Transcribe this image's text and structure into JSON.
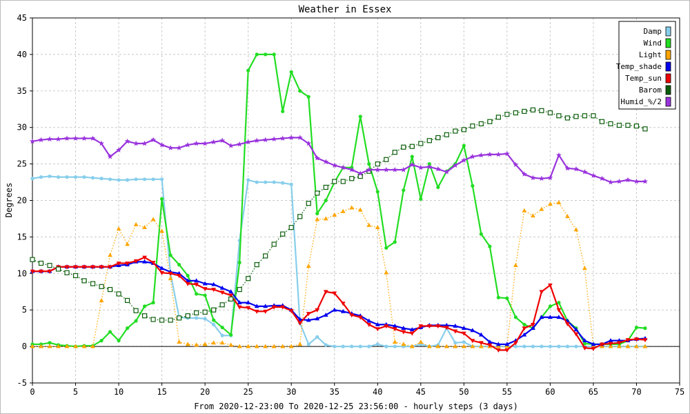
{
  "chart_data": {
    "type": "line",
    "title": "Weather in Essex",
    "xlabel": "From 2020-12-23:00 To 2020-12-25 23:56:00 - hourly steps (3 days)",
    "ylabel": "Degrees",
    "xlim": [
      0,
      75
    ],
    "ylim": [
      -5,
      45
    ],
    "xticks": [
      0,
      5,
      10,
      15,
      20,
      25,
      30,
      35,
      40,
      45,
      50,
      55,
      60,
      65,
      70,
      75
    ],
    "yticks": [
      -5,
      0,
      5,
      10,
      15,
      20,
      25,
      30,
      35,
      40,
      45
    ],
    "grid": true,
    "legend_position": "top-right",
    "series": [
      {
        "name": "Damp",
        "color": "#87ceeb",
        "marker": "circle",
        "dash": "solid",
        "values": [
          23,
          23.2,
          23.3,
          23.2,
          23.2,
          23.2,
          23.2,
          23.1,
          23,
          22.9,
          22.8,
          22.8,
          22.9,
          22.9,
          22.9,
          22.9,
          10,
          4,
          3.9,
          3.9,
          3.8,
          3,
          1.5,
          1.5,
          14.5,
          22.8,
          22.5,
          22.5,
          22.5,
          22.4,
          22.2,
          3.2,
          0.3,
          1.3,
          0.2,
          0,
          0,
          0,
          0,
          0,
          0.3,
          0,
          0,
          0,
          0,
          0.3,
          0,
          0.2,
          2.5,
          0.5,
          0.6,
          0,
          0,
          0,
          0,
          0,
          0,
          0,
          0,
          0,
          0,
          0,
          0,
          0,
          0,
          0,
          0,
          0,
          0,
          0,
          0,
          0
        ]
      },
      {
        "name": "Wind",
        "color": "#22dd22",
        "marker": "circle",
        "dash": "solid",
        "values": [
          0.3,
          0.3,
          0.5,
          0.2,
          0.1,
          0,
          0.1,
          0.1,
          0.8,
          2,
          0.8,
          2.5,
          3.5,
          5.5,
          6,
          20.2,
          12.5,
          11.2,
          9.7,
          7.2,
          7,
          3.6,
          2.6,
          1.6,
          11.5,
          37.8,
          40,
          40,
          40,
          32.2,
          37.6,
          35,
          34.2,
          18.2,
          20,
          22.5,
          24.5,
          24.5,
          31.5,
          25,
          21.2,
          13.5,
          14.3,
          21.4,
          26,
          20.2,
          25,
          21.8,
          24,
          25,
          27.5,
          22,
          15.4,
          13.7,
          6.7,
          6.6,
          4,
          3,
          2.5,
          4,
          5.5,
          6,
          3.5,
          2.5,
          0.4,
          0.3,
          0.3,
          0.3,
          0.3,
          0.8,
          2.6,
          2.5
        ]
      },
      {
        "name": "Light",
        "color": "#ffa500",
        "marker": "triangle",
        "dash": "dotted",
        "values": [
          0,
          0,
          0,
          0,
          0,
          0,
          0,
          0,
          6.3,
          12.5,
          16.1,
          14,
          16.7,
          16.3,
          17.4,
          15.8,
          9.3,
          0.6,
          0.3,
          0.2,
          0.3,
          0.5,
          0.5,
          0.2,
          0,
          0,
          0,
          0,
          0,
          0,
          0,
          0.3,
          11,
          17.4,
          17.5,
          18,
          18.5,
          19,
          18.7,
          16.6,
          16.3,
          10.1,
          0.6,
          0.3,
          0,
          0.6,
          0,
          0,
          0,
          0,
          0,
          0,
          0,
          0,
          0,
          0,
          11.1,
          18.6,
          17.9,
          18.8,
          19.5,
          19.7,
          17.8,
          16,
          10.7,
          0,
          0,
          0,
          0,
          0,
          0,
          0
        ]
      },
      {
        "name": "Temp_shade",
        "color": "#0000ee",
        "marker": "triangle",
        "dash": "solid",
        "values": [
          10.3,
          10.3,
          10.3,
          10.9,
          10.9,
          10.9,
          10.9,
          10.9,
          10.9,
          10.9,
          11.1,
          11.2,
          11.6,
          11.6,
          11.4,
          10.7,
          10.2,
          10,
          9,
          9,
          8.6,
          8.5,
          8,
          7.5,
          6,
          6,
          5.5,
          5.5,
          5.6,
          5.6,
          5,
          3.7,
          3.6,
          3.8,
          4.3,
          5,
          4.8,
          4.5,
          4.2,
          3.5,
          3,
          3,
          2.8,
          2.5,
          2.3,
          2.6,
          2.9,
          2.9,
          2.9,
          2.8,
          2.5,
          2.2,
          1.6,
          0.6,
          0.3,
          0.3,
          0.8,
          1.6,
          2.5,
          4,
          4,
          4,
          3.5,
          2.3,
          0.8,
          0.3,
          0.3,
          0.8,
          0.8,
          0.8,
          1,
          1.1
        ]
      },
      {
        "name": "Temp_sun",
        "color": "#ee0000",
        "marker": "triangle-down",
        "dash": "solid",
        "values": [
          10.3,
          10.3,
          10.3,
          10.9,
          10.9,
          10.9,
          10.9,
          10.9,
          10.9,
          10.9,
          11.4,
          11.4,
          11.7,
          12.2,
          11.5,
          10.1,
          10,
          9.7,
          8.6,
          8.5,
          7.9,
          7.8,
          7.4,
          7,
          5.4,
          5.3,
          4.8,
          4.8,
          5.4,
          5.4,
          4.9,
          3.2,
          4.5,
          5,
          7.5,
          7.3,
          5.9,
          4.3,
          4,
          3,
          2.4,
          2.8,
          2.4,
          2,
          1.8,
          2.8,
          2.8,
          2.8,
          2.6,
          2.1,
          1.8,
          0.8,
          0.5,
          0.2,
          -0.5,
          -0.5,
          0.5,
          2.5,
          3,
          7.5,
          8.4,
          5,
          3.1,
          1.7,
          -0.2,
          -0.3,
          0.3,
          0.4,
          0.5,
          0.9,
          1,
          0.9
        ]
      },
      {
        "name": "Barom",
        "color": "#0b5d0b",
        "marker": "square",
        "dash": "dotted",
        "values": [
          11.9,
          11.4,
          11.1,
          10.6,
          10.1,
          9.7,
          9,
          8.6,
          8.2,
          7.8,
          7.2,
          6.3,
          4.9,
          4.2,
          3.7,
          3.6,
          3.6,
          3.9,
          4.2,
          4.6,
          4.7,
          5,
          5.7,
          6.5,
          7.8,
          9.3,
          11.2,
          12.4,
          14,
          15.4,
          16.3,
          17.8,
          19.6,
          21,
          21.8,
          22.6,
          22.6,
          23,
          23.3,
          24,
          25,
          25.6,
          26.6,
          27.3,
          27.4,
          27.8,
          28.2,
          28.6,
          29,
          29.5,
          29.7,
          30.2,
          30.5,
          30.8,
          31.4,
          31.8,
          32,
          32.2,
          32.4,
          32.3,
          32,
          31.6,
          31.3,
          31.5,
          31.6,
          31.6,
          30.8,
          30.5,
          30.3,
          30.3,
          30.2,
          29.8
        ]
      },
      {
        "name": "Humid_%/2",
        "color": "#9933dd",
        "marker": "star",
        "dash": "solid",
        "values": [
          28.1,
          28.3,
          28.4,
          28.4,
          28.5,
          28.5,
          28.5,
          28.5,
          27.8,
          26,
          26.9,
          28.1,
          27.8,
          27.8,
          28.3,
          27.6,
          27.2,
          27.2,
          27.6,
          27.8,
          27.8,
          28,
          28.2,
          27.5,
          27.7,
          28,
          28.2,
          28.3,
          28.4,
          28.5,
          28.6,
          28.6,
          27.8,
          25.8,
          25.3,
          24.8,
          24.5,
          24.2,
          23.7,
          24.2,
          24.2,
          24.2,
          24.2,
          24.2,
          24.9,
          24.5,
          24.6,
          24.3,
          23.9,
          24.8,
          25.5,
          26,
          26.2,
          26.3,
          26.3,
          26.4,
          24.9,
          23.6,
          23.1,
          23,
          23.1,
          26.2,
          24.4,
          24.3,
          23.9,
          23.4,
          23,
          22.5,
          22.6,
          22.8,
          22.6,
          22.6
        ]
      }
    ]
  }
}
